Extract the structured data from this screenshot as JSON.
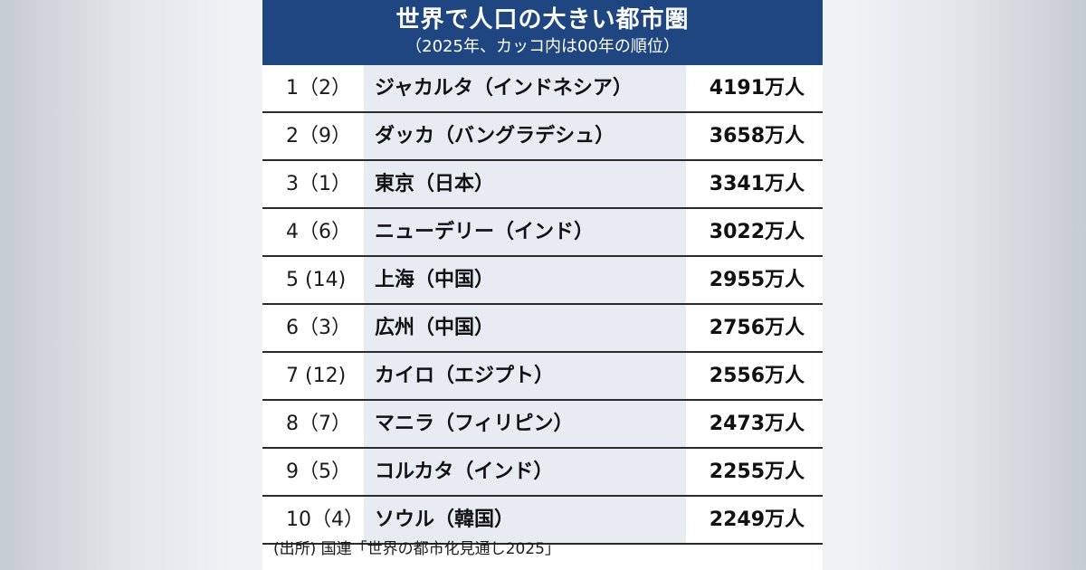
{
  "title": "世界で人口の大きい都市圏",
  "subtitle": "（2025年、カッコ内は00年の順位）",
  "source": "(出所) 国連「世界の都市化見通し2025」",
  "colors": {
    "header_bg": "#1f4680",
    "city_column_bg": "#e6ecf2"
  },
  "chart_data": {
    "type": "table",
    "title": "世界で人口の大きい都市圏",
    "subtitle": "（2025年、カッコ内は00年の順位）",
    "columns": [
      "rank_2025",
      "rank_2000",
      "city",
      "population"
    ],
    "rows": [
      {
        "rank_label": "1（2）",
        "rank_2025": 1,
        "rank_2000": 2,
        "city": "ジャカルタ（インドネシア）",
        "population_label": "4191万人",
        "population": 4191
      },
      {
        "rank_label": "2（9）",
        "rank_2025": 2,
        "rank_2000": 9,
        "city": "ダッカ（バングラデシュ）",
        "population_label": "3658万人",
        "population": 3658
      },
      {
        "rank_label": "3（1）",
        "rank_2025": 3,
        "rank_2000": 1,
        "city": "東京（日本）",
        "population_label": "3341万人",
        "population": 3341
      },
      {
        "rank_label": "4（6）",
        "rank_2025": 4,
        "rank_2000": 6,
        "city": "ニューデリー（インド）",
        "population_label": "3022万人",
        "population": 3022
      },
      {
        "rank_label": "5 (14)",
        "rank_2025": 5,
        "rank_2000": 14,
        "city": "上海（中国）",
        "population_label": "2955万人",
        "population": 2955
      },
      {
        "rank_label": "6（3）",
        "rank_2025": 6,
        "rank_2000": 3,
        "city": "広州（中国）",
        "population_label": "2756万人",
        "population": 2756
      },
      {
        "rank_label": "7 (12)",
        "rank_2025": 7,
        "rank_2000": 12,
        "city": "カイロ（エジプト）",
        "population_label": "2556万人",
        "population": 2556
      },
      {
        "rank_label": "8（7）",
        "rank_2025": 8,
        "rank_2000": 7,
        "city": "マニラ（フィリピン）",
        "population_label": "2473万人",
        "population": 2473
      },
      {
        "rank_label": "9（5）",
        "rank_2025": 9,
        "rank_2000": 5,
        "city": "コルカタ（インド）",
        "population_label": "2255万人",
        "population": 2255
      },
      {
        "rank_label": "10（4）",
        "rank_2025": 10,
        "rank_2000": 4,
        "city": "ソウル（韓国）",
        "population_label": "2249万人",
        "population": 2249
      }
    ]
  }
}
